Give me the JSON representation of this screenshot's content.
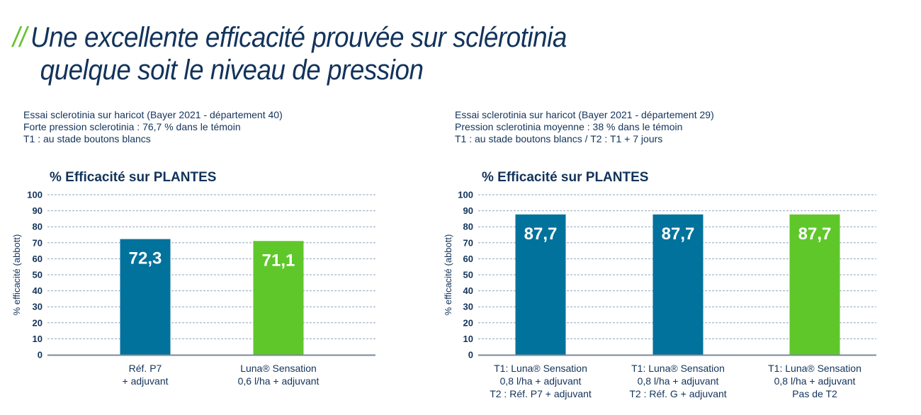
{
  "title": {
    "prefix": "//",
    "line1": "Une excellente efficacité prouvée sur sclérotinia",
    "line2": "quelque soit le niveau de pression"
  },
  "colors": {
    "text": "#12335a",
    "accent_green": "#66c12e",
    "bar_blue": "#00729b",
    "bar_green": "#5fc72a",
    "grid": "#8ea6bf",
    "axis": "#7a8a99"
  },
  "chart_data": [
    {
      "type": "bar",
      "info": [
        "Essai sclerotinia sur haricot (Bayer 2021 - département 40)",
        "Forte pression sclerotinia : 76,7 % dans le témoin",
        "T1 : au stade boutons blancs"
      ],
      "title": "% Efficacité sur PLANTES",
      "ylabel": "% efficacité (abbott)",
      "xlabel": "",
      "ylim": [
        0,
        100
      ],
      "yticks": [
        "0",
        "10",
        "20",
        "30",
        "40",
        "50",
        "60",
        "70",
        "80",
        "90",
        "100"
      ],
      "grid": true,
      "categories": [
        [
          "Réf. P7",
          "+ adjuvant"
        ],
        [
          "Luna® Sensation",
          "0,6 l/ha + adjuvant"
        ]
      ],
      "values": [
        72.3,
        71.1
      ],
      "value_labels": [
        "72,3",
        "71,1"
      ],
      "bar_colors": [
        "#00729b",
        "#5fc72a"
      ]
    },
    {
      "type": "bar",
      "info": [
        "Essai sclerotinia sur haricot (Bayer 2021 - département 29)",
        "Pression sclerotinia moyenne : 38 % dans le témoin",
        "T1 : au stade boutons blancs / T2 : T1 + 7 jours"
      ],
      "title": "% Efficacité sur PLANTES",
      "ylabel": "% efficacité (abbott)",
      "xlabel": "",
      "ylim": [
        0,
        100
      ],
      "yticks": [
        "0",
        "10",
        "20",
        "30",
        "40",
        "50",
        "60",
        "70",
        "80",
        "90",
        "100"
      ],
      "grid": true,
      "categories": [
        [
          "T1: Luna® Sensation",
          "0,8 l/ha + adjuvant",
          "T2 : Réf. P7 + adjuvant"
        ],
        [
          "T1: Luna® Sensation",
          "0,8 l/ha + adjuvant",
          "T2 : Réf. G + adjuvant"
        ],
        [
          "T1: Luna® Sensation",
          "0,8 l/ha + adjuvant",
          "Pas de T2"
        ]
      ],
      "values": [
        87.7,
        87.7,
        87.7
      ],
      "value_labels": [
        "87,7",
        "87,7",
        "87,7"
      ],
      "bar_colors": [
        "#00729b",
        "#00729b",
        "#5fc72a"
      ]
    }
  ]
}
